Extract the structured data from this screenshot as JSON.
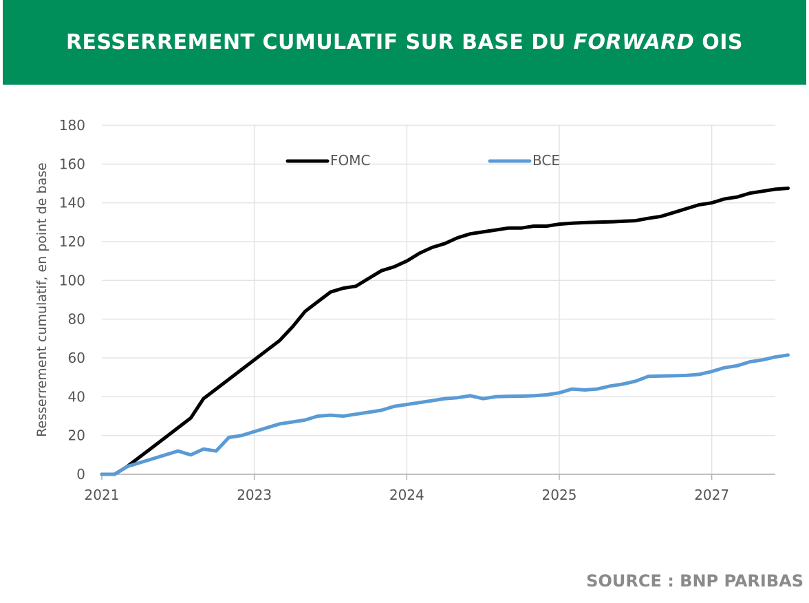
{
  "header": {
    "title_part1": "RESSERREMENT CUMULATIF SUR BASE DU ",
    "title_italic": "FORWARD",
    "title_part2": " OIS",
    "background": "#008f5a"
  },
  "source": "SOURCE : BNP PARIBAS",
  "chart_data": {
    "type": "line",
    "ylabel": "Resserrement cumulatif, en point de base",
    "ylim": [
      0,
      180
    ],
    "yticks": [
      0,
      20,
      40,
      60,
      80,
      100,
      120,
      140,
      160,
      180
    ],
    "xlim": [
      0,
      53
    ],
    "xticks": [
      {
        "x": 0,
        "label": "2021"
      },
      {
        "x": 12,
        "label": "2023"
      },
      {
        "x": 24,
        "label": "2024"
      },
      {
        "x": 36,
        "label": "2025"
      },
      {
        "x": 48,
        "label": "2027"
      }
    ],
    "grid": true,
    "legend_position": "top",
    "series": [
      {
        "name": "FOMC",
        "color": "#000000",
        "values": [
          0,
          0,
          4,
          9,
          14,
          19,
          24,
          29,
          39,
          44,
          49,
          54,
          59,
          64,
          69,
          76,
          84,
          89,
          94,
          96,
          97,
          101,
          105,
          107,
          110,
          114,
          117,
          119,
          122,
          124,
          125,
          126,
          127,
          127,
          128,
          128,
          129,
          129.5,
          129.8,
          130,
          130.2,
          130.5,
          130.8,
          132,
          133,
          135,
          137,
          139,
          140,
          142,
          143,
          145,
          146,
          147,
          147.5
        ]
      },
      {
        "name": "BCE",
        "color": "#5b9bd5",
        "values": [
          0,
          0,
          4,
          6,
          8,
          10,
          12,
          10,
          13,
          12,
          19,
          20,
          22,
          24,
          26,
          27,
          28,
          30,
          30.5,
          30,
          31,
          32,
          33,
          35,
          36,
          37,
          38,
          39,
          39.5,
          40.5,
          39,
          40,
          40.2,
          40.3,
          40.5,
          41,
          42,
          44,
          43.5,
          44,
          45.5,
          46.5,
          48,
          50.5,
          50.7,
          50.8,
          51,
          51.5,
          53,
          55,
          56,
          58,
          59,
          60.5,
          61.5
        ]
      }
    ]
  }
}
